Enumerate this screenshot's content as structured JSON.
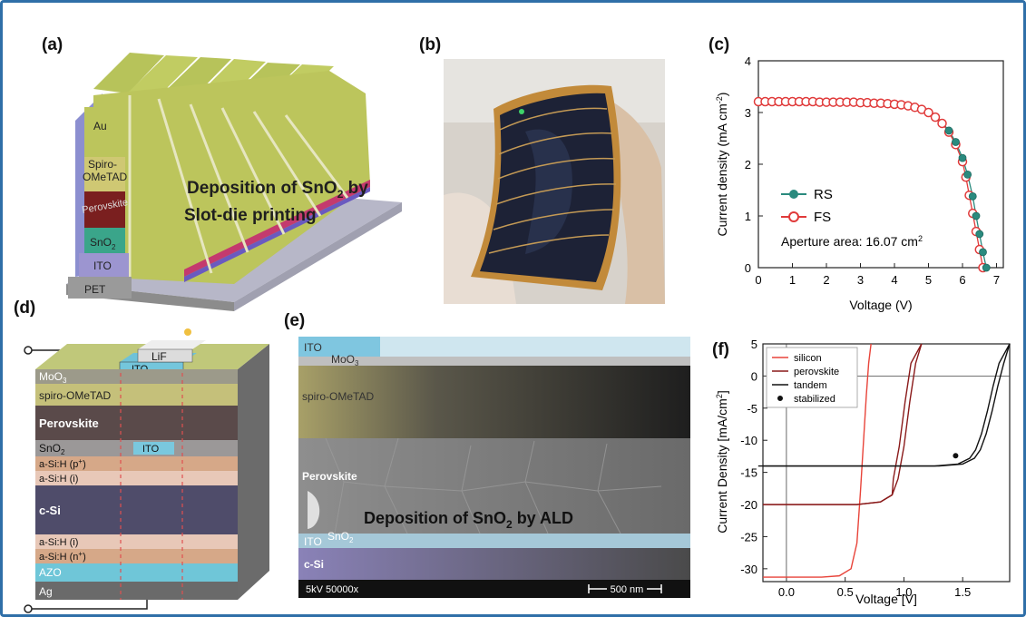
{
  "panels": {
    "a": {
      "label": "(a)",
      "layers": [
        "Au",
        "Spiro-",
        "OMeTAD",
        "Perovskite",
        "SnO",
        "ITO",
        "PET"
      ],
      "caption_line1": "Deposition of SnO",
      "caption_line1_end": " by",
      "caption_line2": "Slot-die printing",
      "sub2": "2",
      "colors": {
        "au": "#b7c35a",
        "spiro": "#cfc873",
        "perovskite": "#7a1f1f",
        "sno2": "#3aa58a",
        "ito": "#9c95d0",
        "pet": "#9a9a9a"
      }
    },
    "b": {
      "label": "(b)"
    },
    "c": {
      "label": "(c)",
      "aperture_prefix": "Aperture area: 16.07 cm",
      "aperture_sup": "2"
    },
    "d": {
      "label": "(d)",
      "top_lif": "LiF",
      "top_ito": "ITO",
      "inner_ito": "ITO",
      "layers": [
        "MoO",
        "spiro-OMeTAD",
        "Perovskite",
        "SnO",
        "a-Si:H (p",
        "a-Si:H (i)",
        "c-Si",
        "a-Si:H (i)",
        "a-Si:H (n",
        "AZO",
        "Ag"
      ],
      "sub3": "3",
      "sub2": "2",
      "plus": "+",
      "close_paren": ")"
    },
    "e": {
      "label": "(e)",
      "labels": {
        "ito_top": "ITO",
        "moo3": "MoO",
        "spiro": "spiro-OMeTAD",
        "perovskite": "Perovskite",
        "ito_bottom": "ITO",
        "sno2": "SnO",
        "csi": "c-Si"
      },
      "sub3": "3",
      "sub2": "2",
      "caption": "Deposition of SnO",
      "caption_end": " by ALD",
      "footer_left": "5kV  50000x",
      "scale_bar": "500 nm"
    },
    "f": {
      "label": "(f)"
    }
  },
  "chart_data": [
    {
      "type": "line",
      "panel": "c",
      "xlabel": "Voltage (V)",
      "ylabel": "Current density (mA cm",
      "ylabel_sup": "-2",
      "xlim": [
        0,
        7.2
      ],
      "ylim": [
        0,
        4
      ],
      "xticks": [
        "0",
        "1",
        "2",
        "3",
        "4",
        "5",
        "6",
        "7"
      ],
      "yticks": [
        "0",
        "1",
        "2",
        "3",
        "4"
      ],
      "series": [
        {
          "name": "RS",
          "color": "#2a8a7e",
          "x": [
            0,
            0.2,
            0.4,
            0.6,
            0.8,
            1.0,
            1.2,
            1.4,
            1.6,
            1.8,
            2.0,
            2.2,
            2.4,
            2.6,
            2.8,
            3.0,
            3.2,
            3.4,
            3.6,
            3.8,
            4.0,
            4.2,
            4.4,
            4.6,
            4.8,
            5.0,
            5.2,
            5.4,
            5.6,
            5.8,
            6.0,
            6.15,
            6.3,
            6.4,
            6.5,
            6.6,
            6.7
          ],
          "y": [
            3.22,
            3.22,
            3.22,
            3.22,
            3.22,
            3.22,
            3.22,
            3.22,
            3.22,
            3.21,
            3.21,
            3.21,
            3.21,
            3.21,
            3.21,
            3.2,
            3.2,
            3.2,
            3.19,
            3.18,
            3.17,
            3.16,
            3.14,
            3.11,
            3.07,
            3.01,
            2.93,
            2.81,
            2.65,
            2.43,
            2.12,
            1.8,
            1.38,
            1.0,
            0.65,
            0.3,
            0.0
          ]
        },
        {
          "name": "FS",
          "color": "#e03a3a",
          "x": [
            0,
            0.2,
            0.4,
            0.6,
            0.8,
            1.0,
            1.2,
            1.4,
            1.6,
            1.8,
            2.0,
            2.2,
            2.4,
            2.6,
            2.8,
            3.0,
            3.2,
            3.4,
            3.6,
            3.8,
            4.0,
            4.2,
            4.4,
            4.6,
            4.8,
            5.0,
            5.2,
            5.4,
            5.6,
            5.8,
            6.0,
            6.1,
            6.2,
            6.3,
            6.4,
            6.5,
            6.6
          ],
          "y": [
            3.21,
            3.21,
            3.21,
            3.21,
            3.21,
            3.21,
            3.21,
            3.21,
            3.21,
            3.2,
            3.2,
            3.2,
            3.2,
            3.2,
            3.2,
            3.19,
            3.19,
            3.18,
            3.18,
            3.17,
            3.16,
            3.15,
            3.13,
            3.1,
            3.06,
            3.0,
            2.91,
            2.79,
            2.62,
            2.38,
            2.05,
            1.75,
            1.4,
            1.05,
            0.7,
            0.35,
            0.0
          ]
        }
      ]
    },
    {
      "type": "line",
      "panel": "f",
      "xlabel": "Voltage [V]",
      "ylabel": "Current Density [mA/cm",
      "ylabel_sup": "2",
      "ylabel_end": "]",
      "xlim": [
        -0.2,
        1.9
      ],
      "ylim": [
        -32,
        5
      ],
      "xticks": [
        "0.0",
        "0.5",
        "1.0",
        "1.5"
      ],
      "yticks": [
        "5",
        "0",
        "-5",
        "-10",
        "-15",
        "-20",
        "-25",
        "-30"
      ],
      "series": [
        {
          "name": "silicon",
          "color": "#e8443a",
          "x": [
            -0.2,
            0.3,
            0.45,
            0.55,
            0.6,
            0.63,
            0.66,
            0.68,
            0.7,
            0.72
          ],
          "y": [
            -31.3,
            -31.3,
            -31.1,
            -30.0,
            -26.0,
            -18.0,
            -9.0,
            -3.0,
            2.0,
            5.0
          ]
        },
        {
          "name": "perovskite",
          "color": "#8a1a1a",
          "x": [
            -0.2,
            0.6,
            0.8,
            0.9,
            0.95,
            1.0,
            1.05,
            1.1,
            1.15
          ],
          "y": [
            -20.0,
            -20.0,
            -19.6,
            -18.5,
            -16.0,
            -11.0,
            -4.0,
            2.0,
            5.0
          ]
        },
        {
          "name": "tandem",
          "color": "#111111",
          "x": [
            -0.2,
            1.3,
            1.5,
            1.6,
            1.65,
            1.7,
            1.75,
            1.8,
            1.85,
            1.9
          ],
          "y": [
            -14.0,
            -14.0,
            -13.7,
            -12.8,
            -11.5,
            -9.0,
            -5.5,
            -1.5,
            2.0,
            5.0
          ]
        },
        {
          "name": "stabilized",
          "color": "#111111",
          "x": [
            1.44
          ],
          "y": [
            -12.4
          ]
        }
      ]
    }
  ]
}
